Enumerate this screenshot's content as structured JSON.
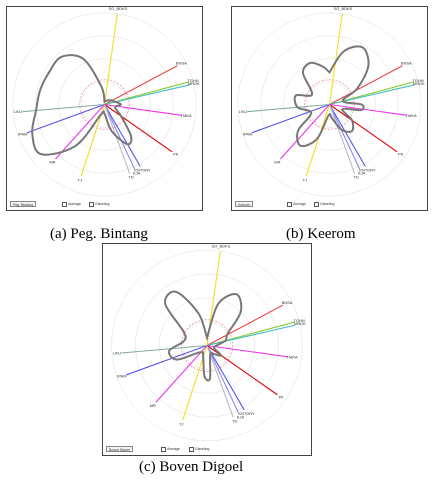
{
  "chart_data": [
    {
      "type": "radar",
      "caption": "(a) Peg. Bintang",
      "lines": [
        {
          "label": "SO_BDKS",
          "angle": 8,
          "r": 1.0,
          "color": "#f0e020"
        },
        {
          "label": "BNSA",
          "angle": 62,
          "r": 0.9,
          "color": "#ee4444"
        },
        {
          "label": "TGHN",
          "angle": 75,
          "r": 0.95,
          "color": "#88cc33"
        },
        {
          "label": "MRDK",
          "angle": 77,
          "r": 0.95,
          "color": "#3fbfbf"
        },
        {
          "label": "TMKA",
          "angle": 98,
          "r": 0.85,
          "color": "#ee33ee"
        },
        {
          "label": "PK",
          "angle": 125,
          "r": 0.9,
          "color": "#dd0000"
        },
        {
          "label": "KNTDRY",
          "angle": 150,
          "r": 0.78,
          "color": "#5555ee"
        },
        {
          "label": "KJA",
          "angle": 155,
          "r": 0.78,
          "color": "#8888ee"
        },
        {
          "label": "TD",
          "angle": 160,
          "r": 0.8,
          "color": "#bbbbbb"
        },
        {
          "label": "TJ",
          "angle": 198,
          "r": 0.82,
          "color": "#f0e020"
        },
        {
          "label": "MR",
          "angle": 222,
          "r": 0.8,
          "color": "#ee33ee"
        },
        {
          "label": "IPAM",
          "angle": 250,
          "r": 0.9,
          "color": "#5555ee"
        },
        {
          "label": "LINJ",
          "angle": 265,
          "r": 0.9,
          "color": "#88aaaa"
        }
      ],
      "shape": [
        [
          0,
          0.03
        ],
        [
          30,
          0.05
        ],
        [
          55,
          0.08
        ],
        [
          75,
          0.12
        ],
        [
          90,
          0.18
        ],
        [
          105,
          0.12
        ],
        [
          125,
          0.22
        ],
        [
          140,
          0.45
        ],
        [
          150,
          0.5
        ],
        [
          165,
          0.3
        ],
        [
          180,
          0.1
        ],
        [
          200,
          0.12
        ],
        [
          215,
          0.55
        ],
        [
          232,
          0.88
        ],
        [
          248,
          0.85
        ],
        [
          265,
          0.75
        ],
        [
          282,
          0.72
        ],
        [
          300,
          0.7
        ],
        [
          318,
          0.7
        ],
        [
          335,
          0.55
        ],
        [
          350,
          0.2
        ],
        [
          360,
          0.03
        ]
      ],
      "legend": [
        "Peg. Bintang",
        "Average",
        "Gisseling"
      ]
    },
    {
      "type": "radar",
      "caption": "(b) Keerom",
      "lines": [
        {
          "label": "SO_BDKS",
          "angle": 8,
          "r": 1.0,
          "color": "#f0e020"
        },
        {
          "label": "BNSA",
          "angle": 62,
          "r": 0.9,
          "color": "#ee4444"
        },
        {
          "label": "TGHN",
          "angle": 75,
          "r": 0.95,
          "color": "#88cc33"
        },
        {
          "label": "MRDK",
          "angle": 77,
          "r": 0.95,
          "color": "#3fbfbf"
        },
        {
          "label": "TMKA",
          "angle": 98,
          "r": 0.85,
          "color": "#ee33ee"
        },
        {
          "label": "PK",
          "angle": 125,
          "r": 0.9,
          "color": "#dd0000"
        },
        {
          "label": "KNTDRY",
          "angle": 150,
          "r": 0.78,
          "color": "#5555ee"
        },
        {
          "label": "KJA",
          "angle": 155,
          "r": 0.78,
          "color": "#8888ee"
        },
        {
          "label": "TD",
          "angle": 160,
          "r": 0.8,
          "color": "#bbbbbb"
        },
        {
          "label": "TJ",
          "angle": 198,
          "r": 0.82,
          "color": "#f0e020"
        },
        {
          "label": "MR",
          "angle": 222,
          "r": 0.8,
          "color": "#ee33ee"
        },
        {
          "label": "IPAM",
          "angle": 250,
          "r": 0.9,
          "color": "#5555ee"
        },
        {
          "label": "LINJ",
          "angle": 265,
          "r": 0.9,
          "color": "#88aaaa"
        }
      ],
      "shape": [
        [
          0,
          0.35
        ],
        [
          15,
          0.6
        ],
        [
          30,
          0.72
        ],
        [
          45,
          0.6
        ],
        [
          60,
          0.35
        ],
        [
          75,
          0.15
        ],
        [
          90,
          0.35
        ],
        [
          100,
          0.35
        ],
        [
          110,
          0.15
        ],
        [
          125,
          0.3
        ],
        [
          140,
          0.38
        ],
        [
          155,
          0.3
        ],
        [
          170,
          0.15
        ],
        [
          185,
          0.12
        ],
        [
          200,
          0.4
        ],
        [
          215,
          0.55
        ],
        [
          230,
          0.45
        ],
        [
          245,
          0.22
        ],
        [
          265,
          0.35
        ],
        [
          285,
          0.38
        ],
        [
          300,
          0.22
        ],
        [
          320,
          0.45
        ],
        [
          335,
          0.5
        ],
        [
          350,
          0.42
        ],
        [
          360,
          0.35
        ]
      ],
      "legend": [
        "Keerom",
        "Average",
        "Gisseling"
      ]
    },
    {
      "type": "radar",
      "caption": "(c) Boven Digoel",
      "lines": [
        {
          "label": "SO_BDKS",
          "angle": 8,
          "r": 1.0,
          "color": "#f0e020"
        },
        {
          "label": "BNSA",
          "angle": 62,
          "r": 0.9,
          "color": "#ee4444"
        },
        {
          "label": "TGHN",
          "angle": 75,
          "r": 0.95,
          "color": "#88cc33"
        },
        {
          "label": "MRDK",
          "angle": 77,
          "r": 0.95,
          "color": "#3fbfbf"
        },
        {
          "label": "TMKA",
          "angle": 98,
          "r": 0.85,
          "color": "#ee33ee"
        },
        {
          "label": "PK",
          "angle": 125,
          "r": 0.9,
          "color": "#dd0000"
        },
        {
          "label": "KNTDRY",
          "angle": 150,
          "r": 0.78,
          "color": "#5555ee"
        },
        {
          "label": "KJA",
          "angle": 155,
          "r": 0.78,
          "color": "#8888ee"
        },
        {
          "label": "TD",
          "angle": 160,
          "r": 0.8,
          "color": "#bbbbbb"
        },
        {
          "label": "TJ",
          "angle": 198,
          "r": 0.82,
          "color": "#f0e020"
        },
        {
          "label": "MR",
          "angle": 222,
          "r": 0.8,
          "color": "#ee33ee"
        },
        {
          "label": "IPAM",
          "angle": 250,
          "r": 0.9,
          "color": "#5555ee"
        },
        {
          "label": "LINJ",
          "angle": 265,
          "r": 0.9,
          "color": "#88aaaa"
        }
      ],
      "shape": [
        [
          0,
          0.08
        ],
        [
          15,
          0.45
        ],
        [
          30,
          0.62
        ],
        [
          45,
          0.5
        ],
        [
          60,
          0.25
        ],
        [
          75,
          0.2
        ],
        [
          90,
          0.1
        ],
        [
          110,
          0.08
        ],
        [
          125,
          0.18
        ],
        [
          140,
          0.12
        ],
        [
          160,
          0.1
        ],
        [
          175,
          0.35
        ],
        [
          185,
          0.32
        ],
        [
          200,
          0.12
        ],
        [
          225,
          0.1
        ],
        [
          245,
          0.35
        ],
        [
          262,
          0.4
        ],
        [
          280,
          0.25
        ],
        [
          300,
          0.28
        ],
        [
          315,
          0.62
        ],
        [
          330,
          0.65
        ],
        [
          345,
          0.35
        ],
        [
          360,
          0.08
        ]
      ],
      "legend": [
        "Boven Digoel",
        "Average",
        "Gisseling"
      ]
    }
  ]
}
